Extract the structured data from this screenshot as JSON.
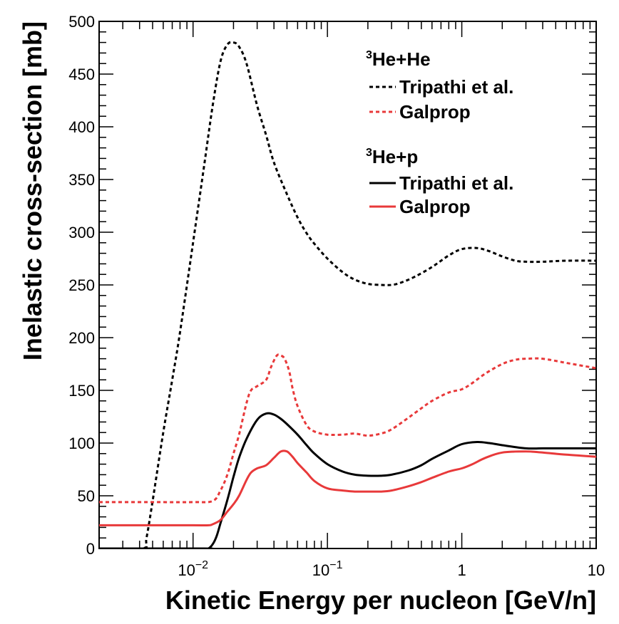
{
  "chart_data": {
    "type": "line",
    "xscale": "log",
    "xlim": [
      0.002,
      10
    ],
    "ylim": [
      0,
      500
    ],
    "xlabel": "Kinetic Energy per nucleon [GeV/n]",
    "ylabel": "Inelastic cross-section [mb]",
    "y_ticks": [
      0,
      50,
      100,
      150,
      200,
      250,
      300,
      350,
      400,
      450,
      500
    ],
    "y_tick_labels": [
      "0",
      "50",
      "100",
      "150",
      "200",
      "250",
      "300",
      "350",
      "400",
      "450",
      "500"
    ],
    "x_ticks": [
      {
        "value": 0.01,
        "base": "10",
        "exp": "−2"
      },
      {
        "value": 0.1,
        "base": "10",
        "exp": "−1"
      },
      {
        "value": 1,
        "base": "1",
        "exp": ""
      },
      {
        "value": 10,
        "base": "10",
        "exp": ""
      }
    ],
    "legend": {
      "groups": [
        {
          "title_sup": "3",
          "title": "He+He"
        },
        {
          "title_sup": "3",
          "title": "He+p"
        }
      ],
      "entries": [
        {
          "group": 0,
          "label": "Tripathi et al.",
          "color": "#000000",
          "style": "dashed"
        },
        {
          "group": 0,
          "label": "Galprop",
          "color": "#e8393a",
          "style": "dashed"
        },
        {
          "group": 1,
          "label": "Tripathi et al.",
          "color": "#000000",
          "style": "solid"
        },
        {
          "group": 1,
          "label": "Galprop",
          "color": "#e8393a",
          "style": "solid"
        }
      ]
    },
    "series": [
      {
        "name": "3He+He Tripathi et al.",
        "color": "#000000",
        "style": "dashed",
        "x": [
          0.002,
          0.0042,
          0.0045,
          0.005,
          0.006,
          0.007,
          0.008,
          0.01,
          0.012,
          0.014,
          0.016,
          0.018,
          0.02,
          0.022,
          0.025,
          0.03,
          0.035,
          0.04,
          0.05,
          0.06,
          0.07,
          0.08,
          0.1,
          0.13,
          0.16,
          0.2,
          0.25,
          0.3,
          0.35,
          0.45,
          0.6,
          0.8,
          1,
          1.3,
          1.6,
          2,
          2.5,
          3,
          4,
          6,
          10
        ],
        "y": [
          0,
          0,
          10,
          45,
          110,
          160,
          205,
          290,
          360,
          420,
          462,
          478,
          480,
          476,
          460,
          420,
          392,
          366,
          336,
          314,
          299,
          289,
          275,
          262,
          255,
          251,
          250,
          250,
          252,
          258,
          267,
          278,
          284,
          285,
          282,
          277,
          273,
          272,
          272,
          273,
          273
        ]
      },
      {
        "name": "3He+He Galprop",
        "color": "#e8393a",
        "style": "dashed",
        "x": [
          0.002,
          0.005,
          0.01,
          0.014,
          0.016,
          0.018,
          0.02,
          0.022,
          0.025,
          0.027,
          0.03,
          0.035,
          0.038,
          0.042,
          0.045,
          0.048,
          0.052,
          0.055,
          0.06,
          0.07,
          0.08,
          0.1,
          0.13,
          0.16,
          0.2,
          0.25,
          0.3,
          0.4,
          0.5,
          0.6,
          0.8,
          1,
          1.2,
          1.5,
          2,
          2.5,
          3,
          4,
          6,
          10
        ],
        "y": [
          44,
          44,
          44,
          45,
          55,
          70,
          90,
          108,
          138,
          150,
          154,
          160,
          172,
          183,
          183,
          180,
          168,
          152,
          135,
          117,
          111,
          108,
          108,
          109,
          107,
          109,
          113,
          124,
          133,
          140,
          148,
          151,
          157,
          166,
          175,
          179,
          180,
          180,
          176,
          171
        ]
      },
      {
        "name": "3He+p Tripathi et al.",
        "color": "#000000",
        "style": "solid",
        "x": [
          0.002,
          0.012,
          0.013,
          0.014,
          0.015,
          0.016,
          0.018,
          0.02,
          0.022,
          0.025,
          0.03,
          0.035,
          0.04,
          0.045,
          0.05,
          0.06,
          0.07,
          0.08,
          0.1,
          0.13,
          0.16,
          0.2,
          0.25,
          0.3,
          0.4,
          0.5,
          0.6,
          0.8,
          1,
          1.3,
          1.6,
          2,
          3,
          4,
          6,
          10
        ],
        "y": [
          0,
          0,
          0,
          4,
          12,
          24,
          46,
          68,
          86,
          104,
          122,
          128,
          127,
          123,
          118,
          108,
          98,
          90,
          80,
          73,
          70,
          69,
          69,
          70,
          74,
          79,
          85,
          93,
          99,
          101,
          100,
          98,
          95,
          95,
          95,
          95
        ]
      },
      {
        "name": "3He+p Galprop",
        "color": "#e8393a",
        "style": "solid",
        "x": [
          0.002,
          0.005,
          0.01,
          0.013,
          0.014,
          0.016,
          0.018,
          0.02,
          0.022,
          0.025,
          0.027,
          0.03,
          0.035,
          0.04,
          0.045,
          0.05,
          0.055,
          0.06,
          0.07,
          0.08,
          0.1,
          0.13,
          0.16,
          0.2,
          0.25,
          0.3,
          0.4,
          0.5,
          0.6,
          0.8,
          1,
          1.2,
          1.5,
          2,
          3,
          4,
          6,
          10
        ],
        "y": [
          22,
          22,
          22,
          22,
          23,
          27,
          35,
          42,
          50,
          65,
          72,
          76,
          79,
          86,
          92,
          92,
          87,
          81,
          72,
          64,
          57,
          55,
          54,
          54,
          54,
          55,
          59,
          63,
          67,
          73,
          76,
          80,
          86,
          91,
          92,
          91,
          89,
          87
        ]
      }
    ]
  }
}
